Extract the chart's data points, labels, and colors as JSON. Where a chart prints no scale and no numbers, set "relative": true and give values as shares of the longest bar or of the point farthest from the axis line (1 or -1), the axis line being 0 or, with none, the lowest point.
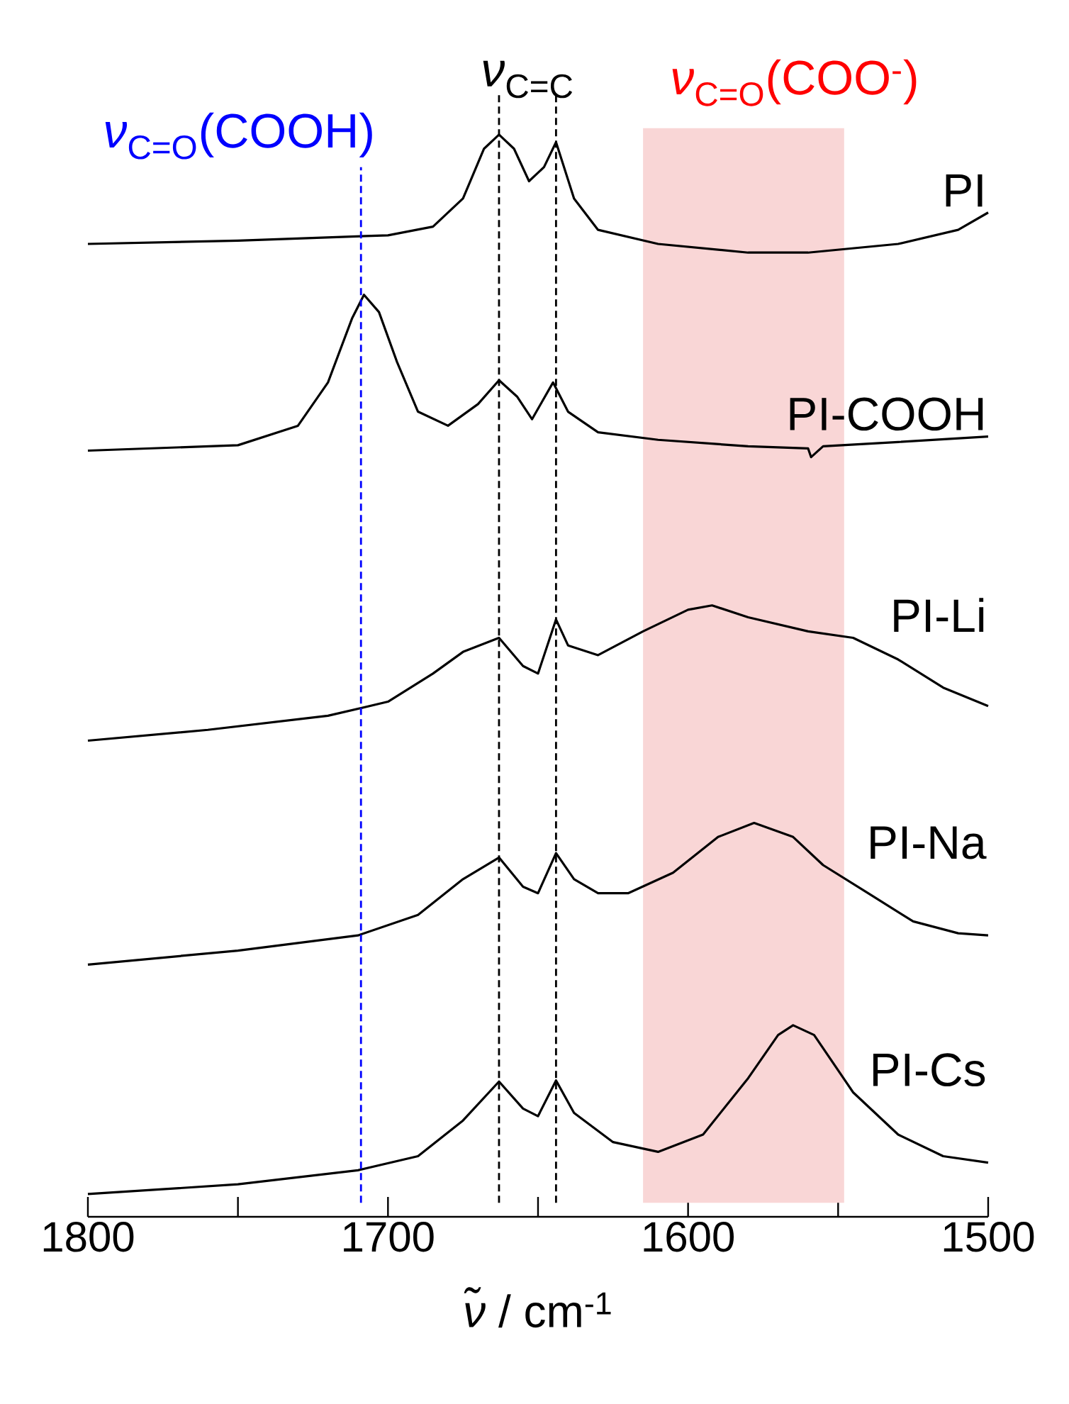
{
  "chart_data": {
    "type": "line",
    "relative": true,
    "xlabel": "*ν̃* / cm$^{-1}$",
    "xlim": [
      1800,
      1500
    ],
    "xticks": [
      1800,
      {
        "value": 1750,
        "label": null
      },
      1700,
      {
        "value": 1650,
        "label": null
      },
      1600,
      {
        "value": 1550,
        "label": null
      },
      1500
    ],
    "series": [
      {
        "name": "PI",
        "color": "#000000",
        "x": [
          1800,
          1750,
          1700,
          1685,
          1675,
          1668,
          1663,
          1658,
          1653,
          1648,
          1644,
          1638,
          1630,
          1610,
          1580,
          1560,
          1530,
          1510,
          1500
        ],
        "values": [
          0.899,
          0.902,
          0.907,
          0.915,
          0.941,
          0.987,
          1.0,
          0.987,
          0.957,
          0.97,
          0.993,
          0.941,
          0.912,
          0.899,
          0.891,
          0.891,
          0.899,
          0.912,
          0.928
        ]
      },
      {
        "name": "PI-COOH",
        "color": "#000000",
        "x": [
          1800,
          1750,
          1730,
          1720,
          1712,
          1708,
          1703,
          1697,
          1690,
          1680,
          1670,
          1663,
          1657,
          1652,
          1645,
          1640,
          1630,
          1610,
          1580,
          1560,
          1559,
          1555,
          1530,
          1500
        ],
        "values": [
          0.708,
          0.713,
          0.731,
          0.771,
          0.83,
          0.852,
          0.836,
          0.79,
          0.744,
          0.731,
          0.751,
          0.773,
          0.758,
          0.737,
          0.771,
          0.744,
          0.725,
          0.718,
          0.712,
          0.71,
          0.702,
          0.712,
          0.716,
          0.721
        ]
      },
      {
        "name": "PI-Li",
        "color": "#000000",
        "x": [
          1800,
          1760,
          1720,
          1700,
          1685,
          1675,
          1663,
          1655,
          1650,
          1644,
          1640,
          1630,
          1615,
          1600,
          1592,
          1580,
          1560,
          1545,
          1530,
          1515,
          1500
        ],
        "values": [
          0.44,
          0.45,
          0.463,
          0.476,
          0.502,
          0.522,
          0.535,
          0.509,
          0.502,
          0.552,
          0.528,
          0.519,
          0.541,
          0.561,
          0.565,
          0.554,
          0.541,
          0.535,
          0.515,
          0.489,
          0.472
        ]
      },
      {
        "name": "PI-Na",
        "color": "#000000",
        "x": [
          1800,
          1750,
          1710,
          1690,
          1675,
          1663,
          1655,
          1650,
          1644,
          1638,
          1630,
          1620,
          1605,
          1590,
          1578,
          1565,
          1555,
          1540,
          1525,
          1510,
          1500
        ],
        "values": [
          0.233,
          0.246,
          0.26,
          0.279,
          0.312,
          0.332,
          0.305,
          0.299,
          0.336,
          0.312,
          0.299,
          0.299,
          0.318,
          0.351,
          0.364,
          0.351,
          0.325,
          0.299,
          0.273,
          0.262,
          0.26
        ]
      },
      {
        "name": "PI-Cs",
        "color": "#000000",
        "x": [
          1800,
          1750,
          1710,
          1690,
          1675,
          1663,
          1655,
          1650,
          1644,
          1638,
          1625,
          1610,
          1595,
          1580,
          1570,
          1565,
          1558,
          1545,
          1530,
          1515,
          1500
        ],
        "values": [
          0.021,
          0.03,
          0.043,
          0.056,
          0.089,
          0.125,
          0.1,
          0.093,
          0.126,
          0.096,
          0.069,
          0.06,
          0.076,
          0.128,
          0.168,
          0.177,
          0.168,
          0.115,
          0.076,
          0.056,
          0.05
        ]
      }
    ],
    "ref_lines": [
      {
        "axis": "x",
        "value": 1709,
        "label": "*ν*$_{C=O}$(COOH)",
        "color": "#0000ff",
        "line_style": "dashed"
      },
      {
        "axis": "x",
        "value": 1663,
        "color": "#000000",
        "line_style": "dashed"
      },
      {
        "axis": "x",
        "value": 1644,
        "color": "#000000",
        "line_style": "dashed"
      }
    ],
    "bands": [
      {
        "axis": "x",
        "from": 1615,
        "to": 1548,
        "label": "*ν*$_{C=O}$(COO$^{-}$)",
        "color": "#f9d6d6"
      }
    ],
    "annotations": [
      "*ν*$_{C=C}$"
    ]
  }
}
